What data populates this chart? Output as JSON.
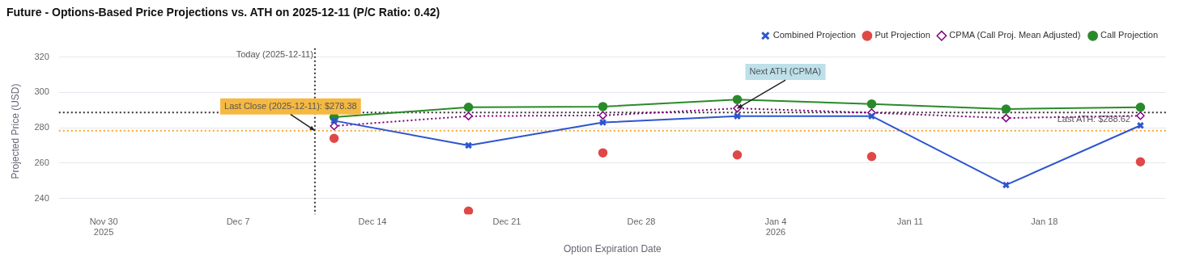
{
  "chart_data": {
    "type": "line",
    "title": "Future - Options-Based Price Projections vs. ATH on 2025-12-11 (P/C Ratio: 0.42)",
    "xlabel": "Option Expiration Date",
    "ylabel": "Projected Price (USD)",
    "x": [
      "2025-12-12",
      "2025-12-19",
      "2025-12-26",
      "2026-01-02",
      "2026-01-09",
      "2026-01-16",
      "2026-01-23"
    ],
    "series": [
      {
        "name": "Call Projection",
        "type": "line",
        "color": "#2a8a2a",
        "marker": "circle",
        "line_style": "solid",
        "values": [
          286,
          291.6,
          292,
          296,
          293.5,
          290.6,
          291.6
        ]
      },
      {
        "name": "CPMA (Call Proj. Mean Adjusted)",
        "type": "line",
        "color": "#800080",
        "marker": "diamond",
        "line_style": "dotted",
        "values": [
          281,
          286.6,
          287,
          291,
          288.5,
          285.5,
          286.8
        ]
      },
      {
        "name": "Put Projection",
        "type": "scatter",
        "color": "#e04848",
        "marker": "circle",
        "values": [
          274,
          232.8,
          265.8,
          264.6,
          263.7,
          null,
          260.7
        ]
      },
      {
        "name": "Combined Projection",
        "type": "line",
        "color": "#2e55d0",
        "marker": "cross",
        "line_style": "solid",
        "values": [
          284,
          270,
          283,
          286.6,
          286.6,
          247.6,
          281.3
        ]
      }
    ],
    "xlim": [
      "2025-11-27T16:00",
      "2026-01-24T08:00"
    ],
    "xticks": [
      {
        "value": "2025-11-30",
        "label": "Nov 30\n2025"
      },
      {
        "value": "2025-12-07",
        "label": "Dec 7"
      },
      {
        "value": "2025-12-14",
        "label": "Dec 14"
      },
      {
        "value": "2025-12-21",
        "label": "Dec 21"
      },
      {
        "value": "2025-12-28",
        "label": "Dec 28"
      },
      {
        "value": "2026-01-04",
        "label": "Jan 4\n2026"
      },
      {
        "value": "2026-01-11",
        "label": "Jan 11"
      },
      {
        "value": "2026-01-18",
        "label": "Jan 18"
      }
    ],
    "ylim": [
      231,
      325
    ],
    "yticks": [
      240,
      260,
      280,
      300,
      320
    ],
    "grid": "y",
    "legend": "top right",
    "ref_lines": [
      {
        "axis": "x",
        "value": "2025-12-11",
        "label": "Today (2025-12-11)",
        "color": "#333333",
        "line_style": "dotted"
      },
      {
        "axis": "y",
        "value": 288.62,
        "label": "Last ATH: $288.62",
        "color": "#333333",
        "line_style": "dotted"
      },
      {
        "axis": "y",
        "value": 278.38,
        "color": "#f5a623",
        "line_style": "dotted"
      }
    ],
    "annotations": [
      {
        "text": "Last Close (2025-12-11): $278.38",
        "x": "2025-12-11",
        "y": 278.38
      },
      {
        "text": "Next ATH (CPMA)",
        "x": "2026-01-02",
        "y": 291
      }
    ]
  }
}
